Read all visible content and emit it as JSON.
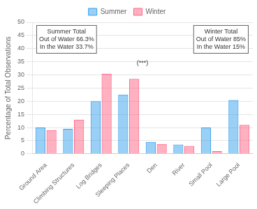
{
  "chart_data": {
    "type": "bar",
    "categories": [
      "Ground Area",
      "Climbing Structures",
      "Log Bridges",
      "Sleeping Places",
      "Den",
      "River",
      "Small Pool",
      "Large Pool"
    ],
    "series": [
      {
        "name": "Summer",
        "values": [
          10.0,
          9.5,
          20.0,
          22.5,
          4.5,
          3.5,
          10.0,
          20.5
        ]
      },
      {
        "name": "Winter",
        "values": [
          9.0,
          13.0,
          30.5,
          28.5,
          3.7,
          3.0,
          1.0,
          11.0
        ]
      }
    ],
    "ylabel": "Percentage of Total Observations",
    "ylim": [
      0,
      50
    ],
    "yticks": [
      0,
      5,
      10,
      15,
      20,
      25,
      30,
      35,
      40,
      45,
      50
    ],
    "grid": true,
    "legend": "top",
    "annotations": [
      {
        "text": "(***)",
        "y": 34.5
      },
      {
        "text": "Summer Total\nOut of Water 66.3%\nIn the Water 33.7%"
      },
      {
        "text": "Winter Total\nOut of Water 85%\nIn the Water 15%"
      }
    ]
  }
}
